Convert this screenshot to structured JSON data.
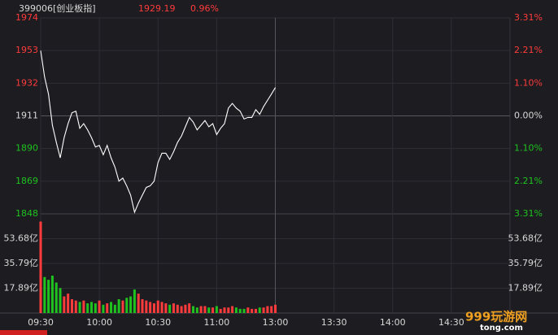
{
  "chart_data": {
    "type": "line",
    "title": "399006[创业板指]",
    "price": 1929.19,
    "change": "0.96%",
    "color": "#ffffff",
    "up_color": "#ff3b3b",
    "down_color": "#1fc21f",
    "x": [
      "09:30",
      "09:32",
      "09:34",
      "09:36",
      "09:38",
      "09:40",
      "09:42",
      "09:44",
      "09:46",
      "09:48",
      "09:50",
      "09:52",
      "09:54",
      "09:56",
      "09:58",
      "10:00",
      "10:02",
      "10:04",
      "10:06",
      "10:08",
      "10:10",
      "10:12",
      "10:14",
      "10:16",
      "10:18",
      "10:20",
      "10:22",
      "10:24",
      "10:26",
      "10:28",
      "10:30",
      "10:32",
      "10:34",
      "10:36",
      "10:38",
      "10:40",
      "10:42",
      "10:44",
      "10:46",
      "10:48",
      "10:50",
      "10:52",
      "10:54",
      "10:56",
      "10:58",
      "11:00",
      "11:02",
      "11:04",
      "11:06",
      "11:08",
      "11:10",
      "11:12",
      "11:14",
      "11:16",
      "11:18",
      "11:20",
      "11:22",
      "11:24",
      "11:26",
      "11:28",
      "11:30"
    ],
    "values": [
      1953,
      1936,
      1925,
      1905,
      1894,
      1884,
      1897,
      1906,
      1913,
      1914,
      1903,
      1906,
      1902,
      1897,
      1891,
      1892,
      1886,
      1892,
      1884,
      1878,
      1869,
      1871,
      1866,
      1860,
      1849,
      1855,
      1860,
      1865,
      1866,
      1869,
      1881,
      1887,
      1887,
      1883,
      1888,
      1894,
      1898,
      1904,
      1910,
      1907,
      1902,
      1905,
      1908,
      1904,
      1906,
      1899,
      1903,
      1906,
      1916,
      1919,
      1916,
      1914,
      1909,
      1910,
      1910,
      1915,
      1912,
      1917,
      1921,
      1925,
      1929.19
    ],
    "xlim": [
      "09:30",
      "15:00"
    ],
    "xticks": [
      "09:30",
      "10:00",
      "10:30",
      "11:00",
      "13:00",
      "13:30",
      "14:00",
      "14:30"
    ],
    "ylim": [
      1848,
      1974
    ],
    "yticks": [
      1974,
      1953,
      1932,
      1911,
      1890,
      1869,
      1848
    ],
    "y2lim": [
      -3.31,
      3.31
    ],
    "y2ticks": [
      {
        "value": 3.31,
        "label": "3.31%"
      },
      {
        "value": 2.21,
        "label": "2.21%"
      },
      {
        "value": 1.1,
        "label": "1.10%"
      },
      {
        "value": 0,
        "label": "0.00%"
      },
      {
        "value": -1.1,
        "label": "1.10%"
      },
      {
        "value": -2.21,
        "label": "2.21%"
      },
      {
        "value": -3.31,
        "label": "3.31%"
      }
    ],
    "grid": true,
    "volume": {
      "type": "bar",
      "values": [
        66,
        26,
        24,
        27,
        22,
        18,
        12,
        14,
        10,
        9,
        8,
        9,
        7,
        8,
        7,
        9,
        6,
        7,
        8,
        6,
        10,
        9,
        11,
        12,
        17,
        14,
        10,
        9,
        8,
        7,
        9,
        8,
        7,
        6,
        7,
        6,
        5,
        6,
        7,
        5,
        4,
        5,
        5,
        4,
        4,
        5,
        3,
        4,
        4,
        5,
        4,
        3,
        3,
        4,
        3,
        3,
        4,
        4,
        5,
        5,
        6
      ],
      "ylim": [
        0,
        71.57
      ],
      "yticks": [
        {
          "value": 53.68,
          "label": "53.68亿"
        },
        {
          "value": 35.79,
          "label": "35.79亿"
        },
        {
          "value": 17.89,
          "label": "17.89亿"
        }
      ]
    },
    "watermark": "999玩游网",
    "watermark_sub": "tong.com"
  }
}
